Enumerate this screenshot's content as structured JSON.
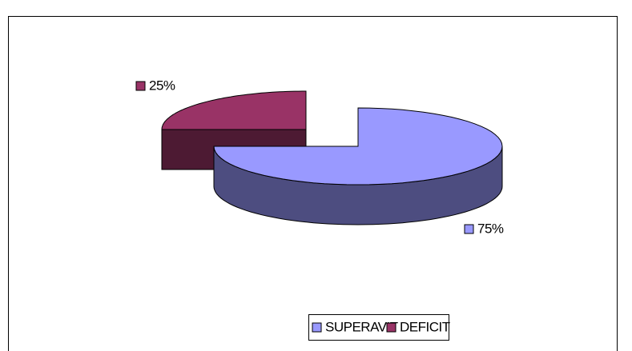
{
  "chart_data": {
    "type": "pie3d",
    "categories": [
      "SUPERAVIT",
      "DEFICIT"
    ],
    "series": [
      {
        "values": [
          75,
          25
        ],
        "value_labels": [
          "75%",
          "25%"
        ],
        "colors": [
          "#9999ff",
          "#993366"
        ]
      }
    ],
    "legend": "bottom"
  }
}
